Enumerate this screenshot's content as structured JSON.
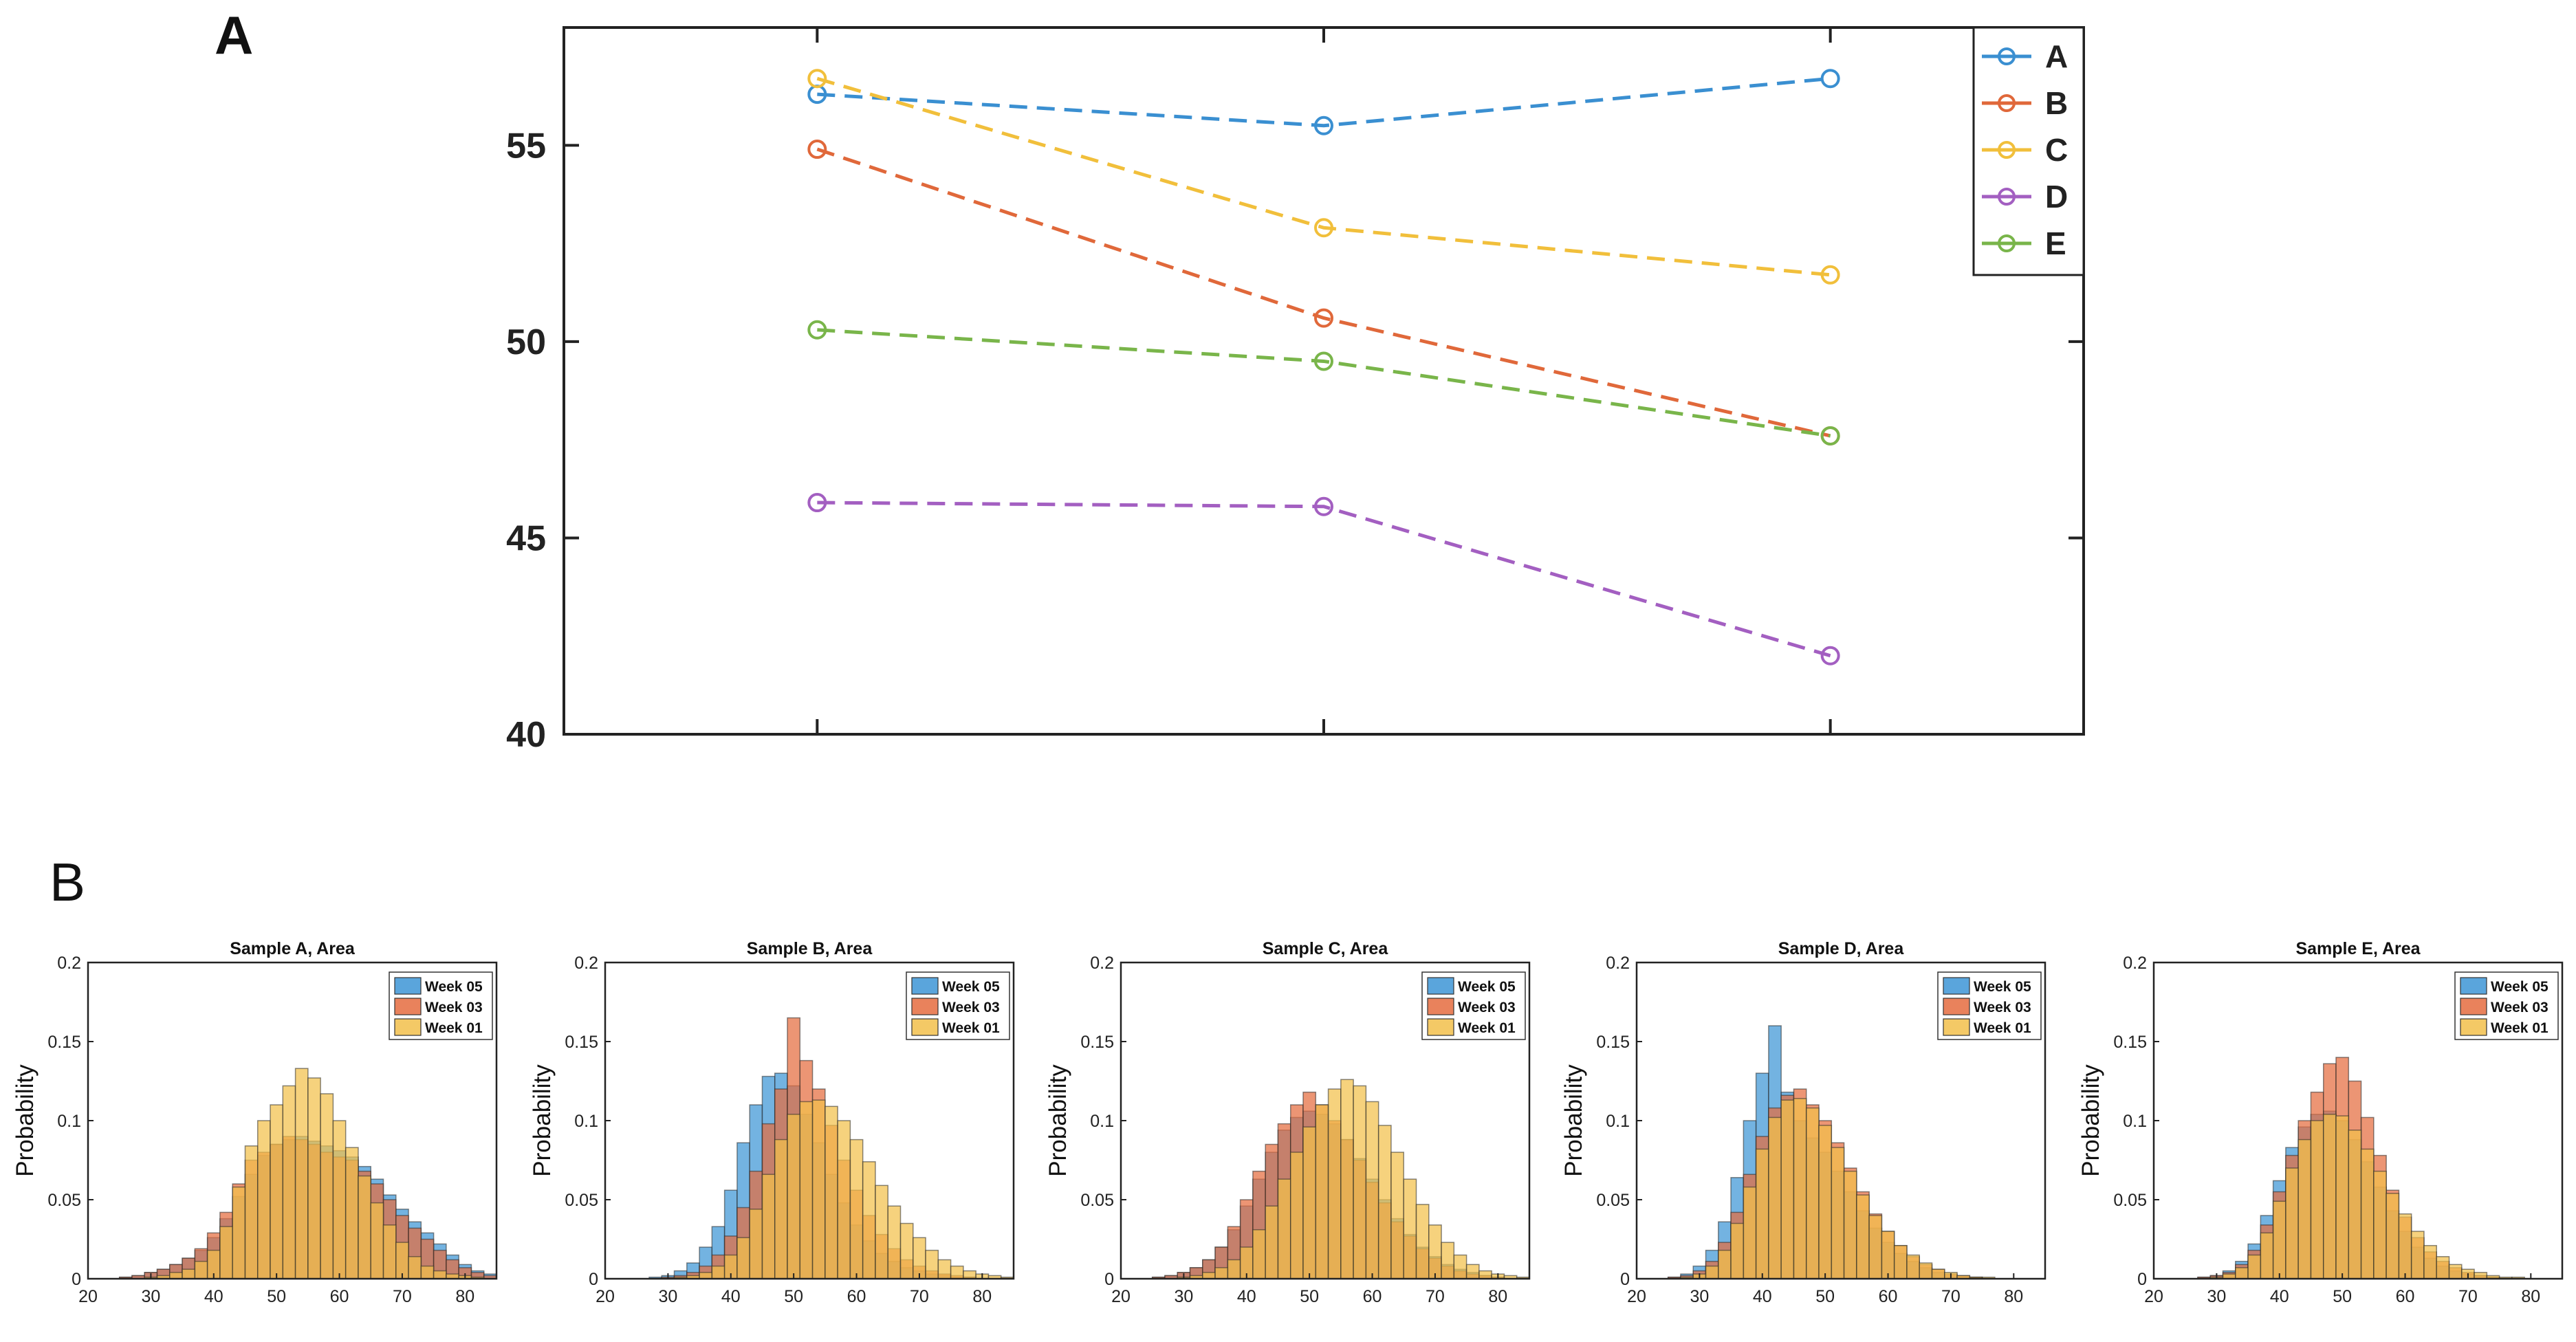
{
  "panel_labels": {
    "a": "A",
    "b": "B"
  },
  "colors": {
    "A": "#3a8fd1",
    "B": "#e0683a",
    "C": "#f1bf3b",
    "D": "#a35fc1",
    "E": "#79b54a",
    "week05": "#3d95d6",
    "week03": "#e56c3f",
    "week01": "#f2c04b"
  },
  "chart_data": [
    {
      "id": "A",
      "type": "line",
      "title": "",
      "xlabel": "",
      "ylabel": "",
      "x": [
        1,
        2,
        3
      ],
      "xlim": [
        0.5,
        3.5
      ],
      "ylim": [
        40,
        58
      ],
      "yticks": [
        40,
        45,
        50,
        55
      ],
      "ytick_labels": [
        "40",
        "45",
        "50",
        "55"
      ],
      "legend_position": "top-right",
      "series": [
        {
          "name": "A",
          "values": [
            56.3,
            55.5,
            56.7
          ]
        },
        {
          "name": "B",
          "values": [
            54.9,
            50.6,
            47.6
          ]
        },
        {
          "name": "C",
          "values": [
            56.7,
            52.9,
            51.7
          ]
        },
        {
          "name": "D",
          "values": [
            45.9,
            45.8,
            42.0
          ]
        },
        {
          "name": "E",
          "values": [
            50.3,
            49.5,
            47.6
          ]
        }
      ]
    },
    {
      "id": "B",
      "type": "bar",
      "subtype": "overlapping-histograms",
      "ylabel": "Probability",
      "xlim": [
        20,
        85
      ],
      "ylim": [
        0,
        0.2
      ],
      "xticks": [
        20,
        30,
        40,
        50,
        60,
        70,
        80
      ],
      "xtick_labels": [
        "20",
        "30",
        "40",
        "50",
        "60",
        "70",
        "80"
      ],
      "yticks": [
        0,
        0.05,
        0.1,
        0.15,
        0.2
      ],
      "ytick_labels": [
        "0",
        "0.05",
        "0.1",
        "0.15",
        "0.2"
      ],
      "legend_position": "top-right",
      "legend": [
        "Week 05",
        "Week 03",
        "Week 01"
      ],
      "bin_start": 25,
      "bin_width": 2,
      "panels": [
        {
          "title": "Sample A, Area",
          "series": [
            {
              "name": "Week 05",
              "values": [
                0.001,
                0.002,
                0.004,
                0.006,
                0.009,
                0.013,
                0.018,
                0.026,
                0.038,
                0.052,
                0.066,
                0.078,
                0.085,
                0.088,
                0.09,
                0.087,
                0.084,
                0.081,
                0.077,
                0.071,
                0.063,
                0.053,
                0.044,
                0.036,
                0.029,
                0.022,
                0.015,
                0.009,
                0.005,
                0.003
              ]
            },
            {
              "name": "Week 03",
              "values": [
                0.001,
                0.002,
                0.004,
                0.006,
                0.009,
                0.013,
                0.019,
                0.029,
                0.042,
                0.06,
                0.075,
                0.08,
                0.085,
                0.09,
                0.088,
                0.085,
                0.08,
                0.077,
                0.075,
                0.068,
                0.06,
                0.05,
                0.04,
                0.032,
                0.025,
                0.018,
                0.012,
                0.007,
                0.004,
                0.002
              ]
            },
            {
              "name": "Week 01",
              "values": [
                0.0,
                0.0,
                0.001,
                0.002,
                0.004,
                0.006,
                0.011,
                0.018,
                0.033,
                0.058,
                0.084,
                0.1,
                0.11,
                0.122,
                0.133,
                0.127,
                0.117,
                0.1,
                0.083,
                0.065,
                0.048,
                0.034,
                0.023,
                0.014,
                0.008,
                0.005,
                0.003,
                0.002,
                0.001,
                0.0
              ]
            }
          ]
        },
        {
          "title": "Sample B, Area",
          "series": [
            {
              "name": "Week 05",
              "values": [
                0.0,
                0.001,
                0.002,
                0.005,
                0.01,
                0.02,
                0.033,
                0.056,
                0.086,
                0.11,
                0.128,
                0.13,
                0.122,
                0.104,
                0.086,
                0.066,
                0.048,
                0.034,
                0.024,
                0.016,
                0.011,
                0.007,
                0.005,
                0.003,
                0.002,
                0.001,
                0.001,
                0.0,
                0.0,
                0.0
              ]
            },
            {
              "name": "Week 03",
              "values": [
                0.0,
                0.0,
                0.001,
                0.002,
                0.004,
                0.008,
                0.015,
                0.027,
                0.045,
                0.068,
                0.098,
                0.12,
                0.165,
                0.138,
                0.12,
                0.097,
                0.075,
                0.056,
                0.04,
                0.028,
                0.019,
                0.012,
                0.008,
                0.005,
                0.003,
                0.002,
                0.001,
                0.0,
                0.0,
                0.0
              ]
            },
            {
              "name": "Week 01",
              "values": [
                0.0,
                0.0,
                0.0,
                0.001,
                0.002,
                0.004,
                0.008,
                0.015,
                0.026,
                0.044,
                0.066,
                0.088,
                0.104,
                0.112,
                0.113,
                0.109,
                0.1,
                0.088,
                0.074,
                0.059,
                0.046,
                0.035,
                0.026,
                0.018,
                0.012,
                0.008,
                0.005,
                0.003,
                0.002,
                0.001
              ]
            }
          ]
        },
        {
          "title": "Sample C, Area",
          "series": [
            {
              "name": "Week 05",
              "values": [
                0.001,
                0.002,
                0.004,
                0.007,
                0.012,
                0.02,
                0.031,
                0.046,
                0.063,
                0.08,
                0.094,
                0.102,
                0.106,
                0.104,
                0.098,
                0.088,
                0.076,
                0.063,
                0.05,
                0.038,
                0.028,
                0.02,
                0.014,
                0.009,
                0.006,
                0.004,
                0.002,
                0.001,
                0.0,
                0.0
              ]
            },
            {
              "name": "Week 03",
              "values": [
                0.001,
                0.002,
                0.004,
                0.007,
                0.012,
                0.02,
                0.033,
                0.05,
                0.068,
                0.085,
                0.098,
                0.11,
                0.118,
                0.11,
                0.1,
                0.088,
                0.075,
                0.061,
                0.048,
                0.036,
                0.027,
                0.019,
                0.013,
                0.008,
                0.005,
                0.003,
                0.002,
                0.001,
                0.0,
                0.0
              ]
            },
            {
              "name": "Week 01",
              "values": [
                0.0,
                0.0,
                0.001,
                0.002,
                0.004,
                0.007,
                0.012,
                0.02,
                0.031,
                0.046,
                0.063,
                0.08,
                0.096,
                0.11,
                0.12,
                0.126,
                0.122,
                0.112,
                0.097,
                0.08,
                0.063,
                0.047,
                0.034,
                0.023,
                0.015,
                0.009,
                0.005,
                0.003,
                0.002,
                0.001
              ]
            }
          ]
        },
        {
          "title": "Sample D, Area",
          "series": [
            {
              "name": "Week 05",
              "values": [
                0.001,
                0.003,
                0.008,
                0.018,
                0.036,
                0.064,
                0.1,
                0.13,
                0.16,
                0.118,
                0.1,
                0.089,
                0.08,
                0.068,
                0.055,
                0.043,
                0.032,
                0.023,
                0.016,
                0.011,
                0.007,
                0.004,
                0.002,
                0.001,
                0.001,
                0.0,
                0.0,
                0.0,
                0.0,
                0.0
              ]
            },
            {
              "name": "Week 03",
              "values": [
                0.001,
                0.002,
                0.005,
                0.011,
                0.023,
                0.042,
                0.066,
                0.09,
                0.108,
                0.116,
                0.12,
                0.11,
                0.1,
                0.086,
                0.07,
                0.055,
                0.041,
                0.03,
                0.021,
                0.014,
                0.009,
                0.006,
                0.003,
                0.002,
                0.001,
                0.0,
                0.0,
                0.0,
                0.0,
                0.0
              ]
            },
            {
              "name": "Week 01",
              "values": [
                0.0,
                0.001,
                0.003,
                0.008,
                0.018,
                0.035,
                0.058,
                0.082,
                0.102,
                0.113,
                0.114,
                0.108,
                0.097,
                0.083,
                0.068,
                0.053,
                0.04,
                0.03,
                0.021,
                0.015,
                0.01,
                0.006,
                0.004,
                0.002,
                0.001,
                0.001,
                0.0,
                0.0,
                0.0,
                0.0
              ]
            }
          ]
        },
        {
          "title": "Sample E, Area",
          "series": [
            {
              "name": "Week 05",
              "values": [
                0.0,
                0.001,
                0.002,
                0.005,
                0.011,
                0.022,
                0.04,
                0.062,
                0.083,
                0.096,
                0.104,
                0.106,
                0.1,
                0.088,
                0.074,
                0.058,
                0.043,
                0.03,
                0.02,
                0.013,
                0.008,
                0.005,
                0.003,
                0.002,
                0.001,
                0.0,
                0.0,
                0.0,
                0.0,
                0.0
              ]
            },
            {
              "name": "Week 03",
              "values": [
                0.0,
                0.001,
                0.002,
                0.004,
                0.009,
                0.018,
                0.034,
                0.055,
                0.078,
                0.1,
                0.118,
                0.136,
                0.14,
                0.125,
                0.102,
                0.078,
                0.056,
                0.039,
                0.026,
                0.017,
                0.011,
                0.007,
                0.004,
                0.002,
                0.001,
                0.0,
                0.0,
                0.0,
                0.0,
                0.0
              ]
            },
            {
              "name": "Week 01",
              "values": [
                0.0,
                0.0,
                0.001,
                0.003,
                0.007,
                0.015,
                0.029,
                0.049,
                0.07,
                0.088,
                0.1,
                0.104,
                0.103,
                0.094,
                0.082,
                0.068,
                0.054,
                0.041,
                0.03,
                0.021,
                0.014,
                0.009,
                0.006,
                0.004,
                0.002,
                0.001,
                0.001,
                0.0,
                0.0,
                0.0
              ]
            }
          ]
        }
      ]
    }
  ]
}
